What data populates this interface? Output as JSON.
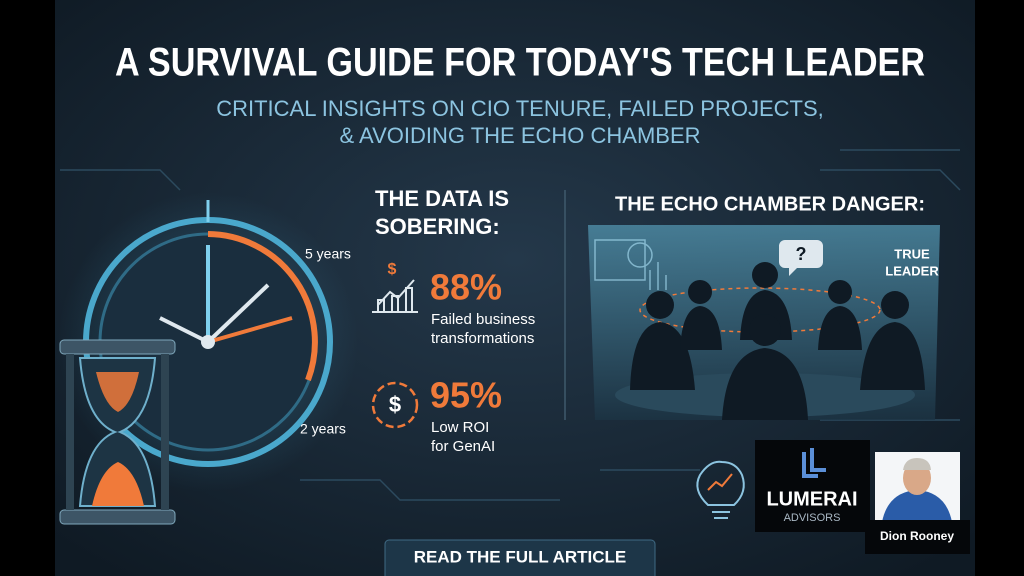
{
  "header": {
    "title": "A SURVIVAL GUIDE FOR TODAY'S TECH LEADER",
    "subtitle": [
      "CRITICAL INSIGHTS ON CIO TENURE, FAILED PROJECTS,",
      "& AVOIDING THE ECHO CHAMBER"
    ]
  },
  "clock": {
    "labels": [
      "5 years",
      "2 years"
    ]
  },
  "data_section": {
    "heading": [
      "THE DATA IS",
      "SOBERING:"
    ],
    "stats": [
      {
        "icon": "$",
        "value": "88%",
        "caption": [
          "Failed business",
          "transformations"
        ]
      },
      {
        "icon": "$",
        "value": "95%",
        "caption": [
          "Low ROI",
          "for GenAI"
        ]
      }
    ]
  },
  "echo_section": {
    "heading": "THE ECHO CHAMBER DANGER:",
    "question": "?",
    "leader_label": [
      "TRUE",
      "LEADER"
    ]
  },
  "logo": {
    "name": "LUMERAI",
    "tagline": "ADVISORS"
  },
  "person": {
    "name": "Dion Rooney"
  },
  "button": {
    "label": "READ THE FULL ARTICLE"
  }
}
